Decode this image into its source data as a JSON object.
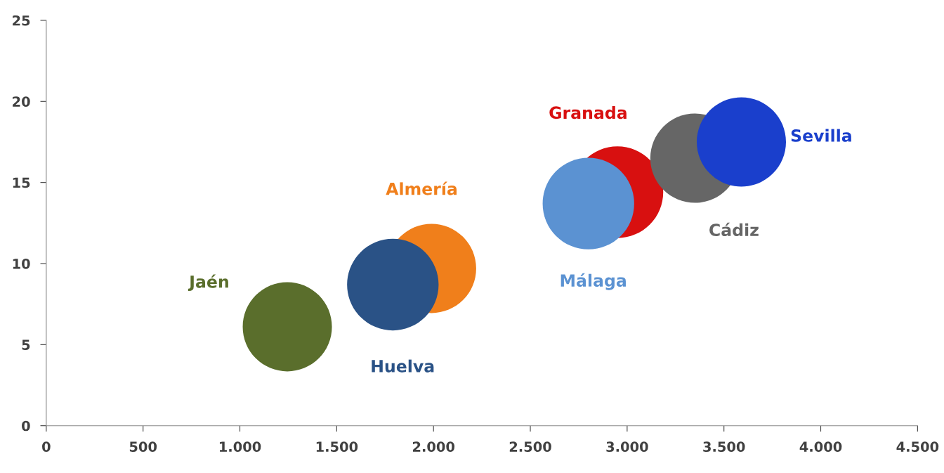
{
  "chart_data": {
    "type": "bubble",
    "xlim": [
      0,
      4500
    ],
    "ylim": [
      0,
      25
    ],
    "xticks": [
      0,
      500,
      {
        "value": 1000,
        "label": "1.000"
      },
      {
        "value": 1500,
        "label": "1.500"
      },
      {
        "value": 2000,
        "label": "2.000"
      },
      {
        "value": 2500,
        "label": "2.500"
      },
      {
        "value": 3000,
        "label": "3.000"
      },
      {
        "value": 3500,
        "label": "3.500"
      },
      {
        "value": 4000,
        "label": "4.000"
      },
      {
        "value": 4500,
        "label": "4.500"
      }
    ],
    "yticks": [
      0,
      5,
      10,
      15,
      20,
      25
    ],
    "grid": false,
    "legend": false,
    "series": [
      {
        "name": "Jaén",
        "color": "#5a6e2c",
        "x": [
          1245
        ],
        "values": [
          6.1
        ],
        "sizes": [
          0.95
        ]
      },
      {
        "name": "Almería",
        "color": "#f07f1b",
        "x": [
          1990
        ],
        "values": [
          9.7
        ],
        "sizes": [
          0.95
        ]
      },
      {
        "name": "Huelva",
        "color": "#2a5286",
        "x": [
          1790
        ],
        "values": [
          8.7
        ],
        "sizes": [
          1
        ]
      },
      {
        "name": "Granada",
        "color": "#d81010",
        "x": [
          2950
        ],
        "values": [
          14.4
        ],
        "sizes": [
          1
        ]
      },
      {
        "name": "Málaga",
        "color": "#5b92d2",
        "x": [
          2800
        ],
        "values": [
          13.7
        ],
        "sizes": [
          1
        ]
      },
      {
        "name": "Cádiz",
        "color": "#666666",
        "x": [
          3350
        ],
        "values": [
          16.5
        ],
        "sizes": [
          0.95
        ]
      },
      {
        "name": "Sevilla",
        "color": "#1a3fcc",
        "x": [
          3590
        ],
        "values": [
          17.5
        ],
        "sizes": [
          0.95
        ]
      }
    ]
  }
}
